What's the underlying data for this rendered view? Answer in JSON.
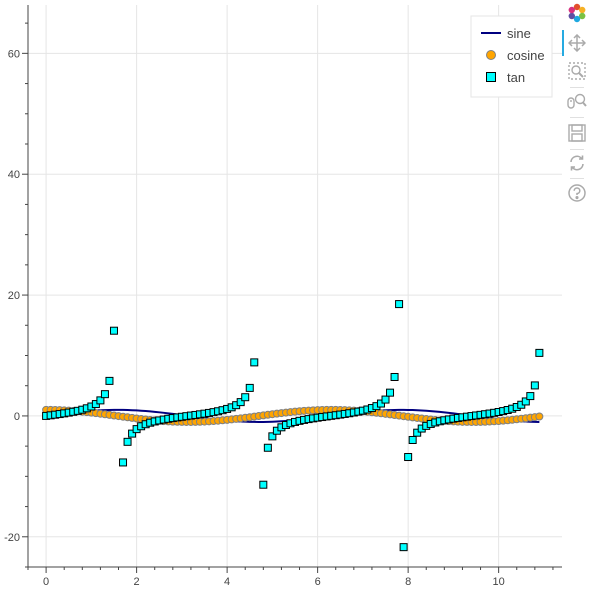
{
  "colors": {
    "sine": "#000080",
    "cosine_fill": "#ffa500",
    "cosine_line": "#808080",
    "tan_fill": "#00ffff",
    "tan_line": "#000000",
    "grid": "#e5e5e5",
    "axis": "#444444",
    "tool_icon": "#aaaaaa",
    "tool_active": "#26aae1"
  },
  "toolbar": {
    "items": [
      {
        "name": "bokeh-logo-icon",
        "interactable": true
      },
      {
        "name": "pan-icon",
        "interactable": true
      },
      {
        "name": "box-zoom-icon",
        "interactable": true
      },
      {
        "name": "wheel-zoom-icon",
        "interactable": true
      },
      {
        "name": "save-icon",
        "interactable": true
      },
      {
        "name": "reset-icon",
        "interactable": true
      },
      {
        "name": "help-icon",
        "interactable": true
      }
    ]
  },
  "chart_data": {
    "type": "line",
    "title": "",
    "xlabel": "",
    "ylabel": "",
    "xlim": [
      -0.4,
      11.4
    ],
    "ylim": [
      -25,
      68
    ],
    "x_ticks": [
      0,
      2,
      4,
      6,
      8,
      10
    ],
    "y_ticks": [
      -20,
      0,
      20,
      40,
      60
    ],
    "x_tick_labels": [
      "0",
      "2",
      "4",
      "6",
      "8",
      "10"
    ],
    "y_tick_labels": [
      "-20",
      "0",
      "20",
      "40",
      "60"
    ],
    "grid": true,
    "legend_position": "top-right",
    "x_range_generated": {
      "start": 0,
      "stop": 11,
      "step": 0.1
    },
    "series": [
      {
        "name": "sine",
        "render": "line",
        "function": "sin",
        "color": "#000080"
      },
      {
        "name": "cosine",
        "render": "circle",
        "function": "cos",
        "fill": "#ffa500",
        "line": "#808080"
      },
      {
        "name": "tan",
        "render": "square",
        "function": "tan",
        "fill": "#00ffff",
        "line": "#000000"
      }
    ],
    "legend": [
      "sine",
      "cosine",
      "tan"
    ]
  }
}
